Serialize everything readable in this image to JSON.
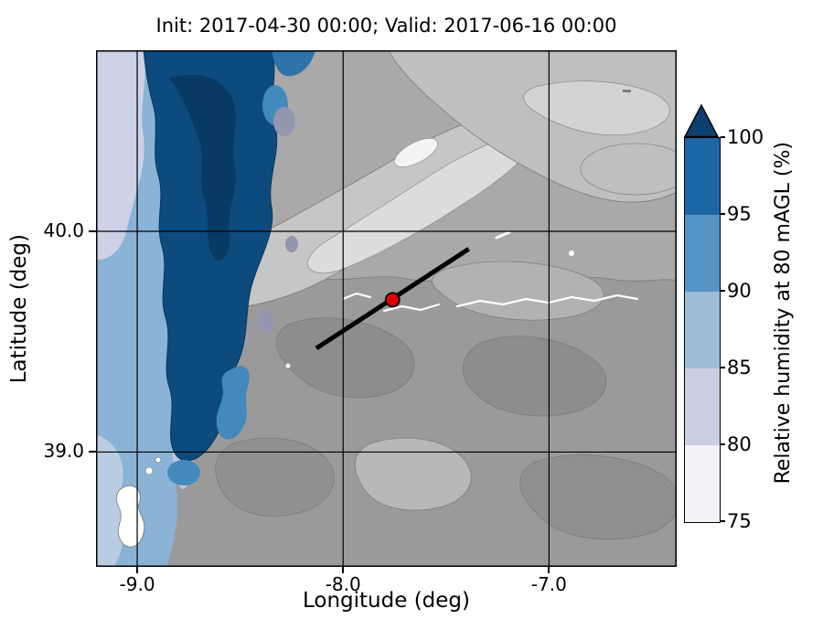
{
  "figure": {
    "title": "Init: 2017-04-30 00:00; Valid: 2017-06-16 00:00",
    "xlabel": "Longitude (deg)",
    "ylabel": "Latitude (deg)"
  },
  "chart_data": {
    "type": "heatmap",
    "title": "Init: 2017-04-30 00:00; Valid: 2017-06-16 00:00",
    "xlabel": "Longitude (deg)",
    "ylabel": "Latitude (deg)",
    "xlim": [
      -9.2,
      -6.38
    ],
    "ylim": [
      38.48,
      40.82
    ],
    "x_ticks": [
      {
        "value": -9.0,
        "label": "-9.0"
      },
      {
        "value": -8.0,
        "label": "-8.0"
      },
      {
        "value": -7.0,
        "label": "-7.0"
      }
    ],
    "y_ticks": [
      {
        "value": 39.0,
        "label": "39.0"
      },
      {
        "value": 40.0,
        "label": "40.0"
      }
    ],
    "gridlines": {
      "x": [
        -9.0,
        -8.0,
        -7.0
      ],
      "y": [
        39.0,
        40.0
      ],
      "color": "#000000"
    },
    "colorbar": {
      "label": "Relative humidity at 80 mAGL (%)",
      "ticks": [
        75,
        80,
        85,
        90,
        95,
        100
      ],
      "tick_labels": [
        "75",
        "80",
        "85",
        "90",
        "95",
        "100"
      ],
      "vmin": 75,
      "vmax": 100,
      "extend": "max",
      "colors": [
        "#f4f1f7",
        "#c9cfe3",
        "#9dbcd8",
        "#5694c6",
        "#1d66a5"
      ],
      "extend_color": "#0b406f"
    },
    "overlays": {
      "transect": {
        "x": [
          -8.13,
          -7.39
        ],
        "y": [
          39.47,
          39.92
        ],
        "color": "#000000",
        "width": 5
      },
      "marker": {
        "x": -7.76,
        "y": 39.69,
        "color": "#dd0000",
        "edge_color": "#000000"
      }
    },
    "map_colors": {
      "terrain_grays": [
        "#8d8d8d",
        "#9a9a9a",
        "#a9a9a9",
        "#c6c6c6",
        "#dcdcdc",
        "#f3f3f3"
      ],
      "humidity_blues": [
        "#cdd1e6",
        "#8ab3d6",
        "#4389bc",
        "#0d4b7e",
        "#093a63"
      ],
      "water_white": "#ffffff"
    }
  }
}
